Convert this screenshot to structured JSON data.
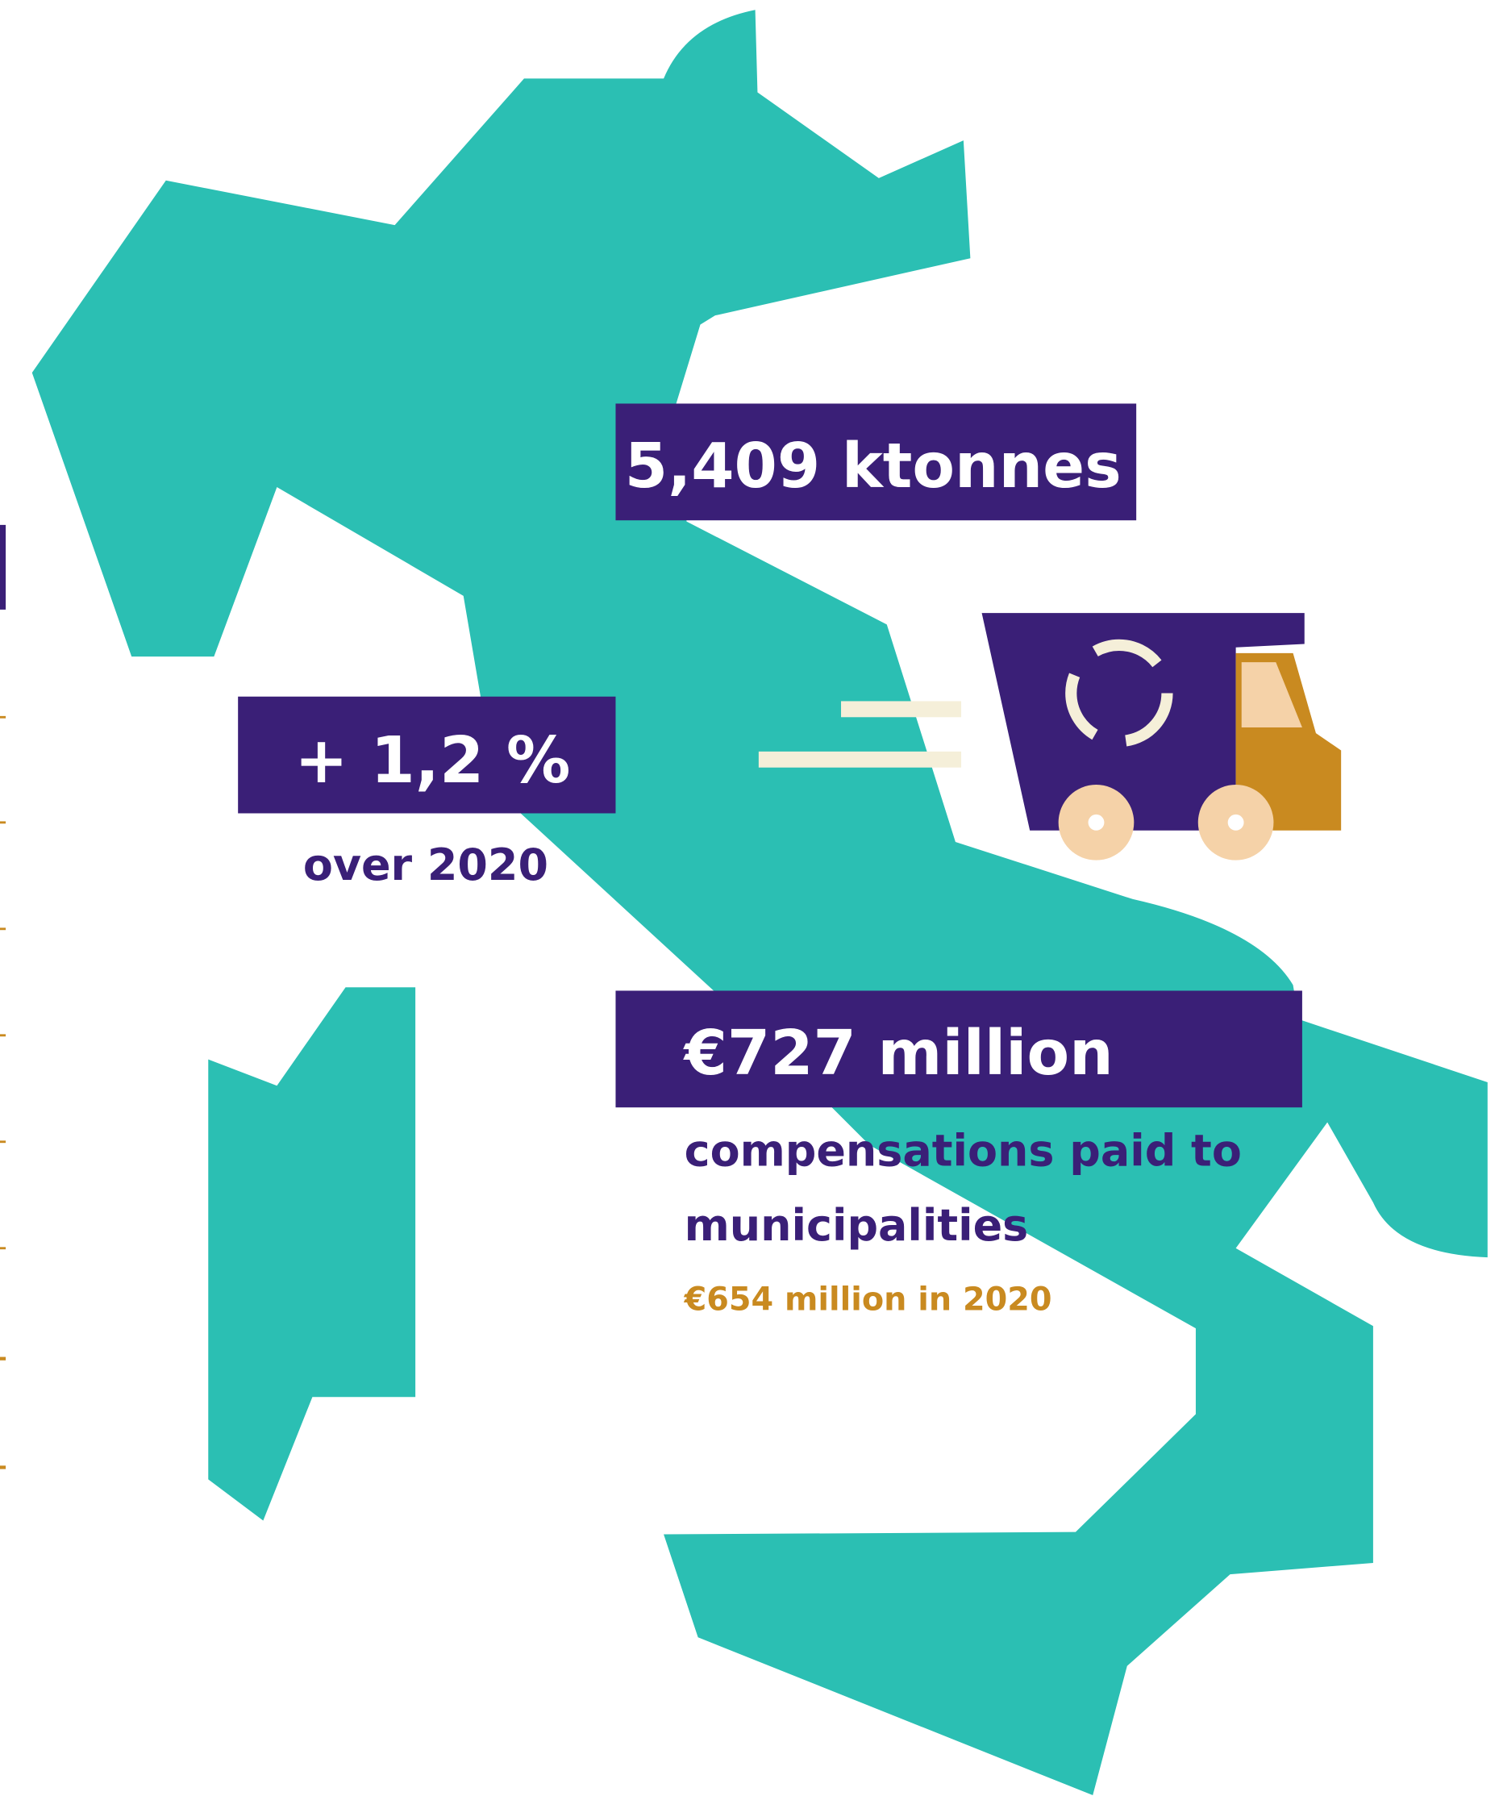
{
  "tonnage": "5,409 ktonnes",
  "growth": {
    "value": "+ 1,2 %",
    "caption": "over 2020"
  },
  "compensation": {
    "value": "€727 million",
    "caption": [
      "compensations paid to",
      "municipalities"
    ],
    "previous": "€654 million in 2020"
  }
}
